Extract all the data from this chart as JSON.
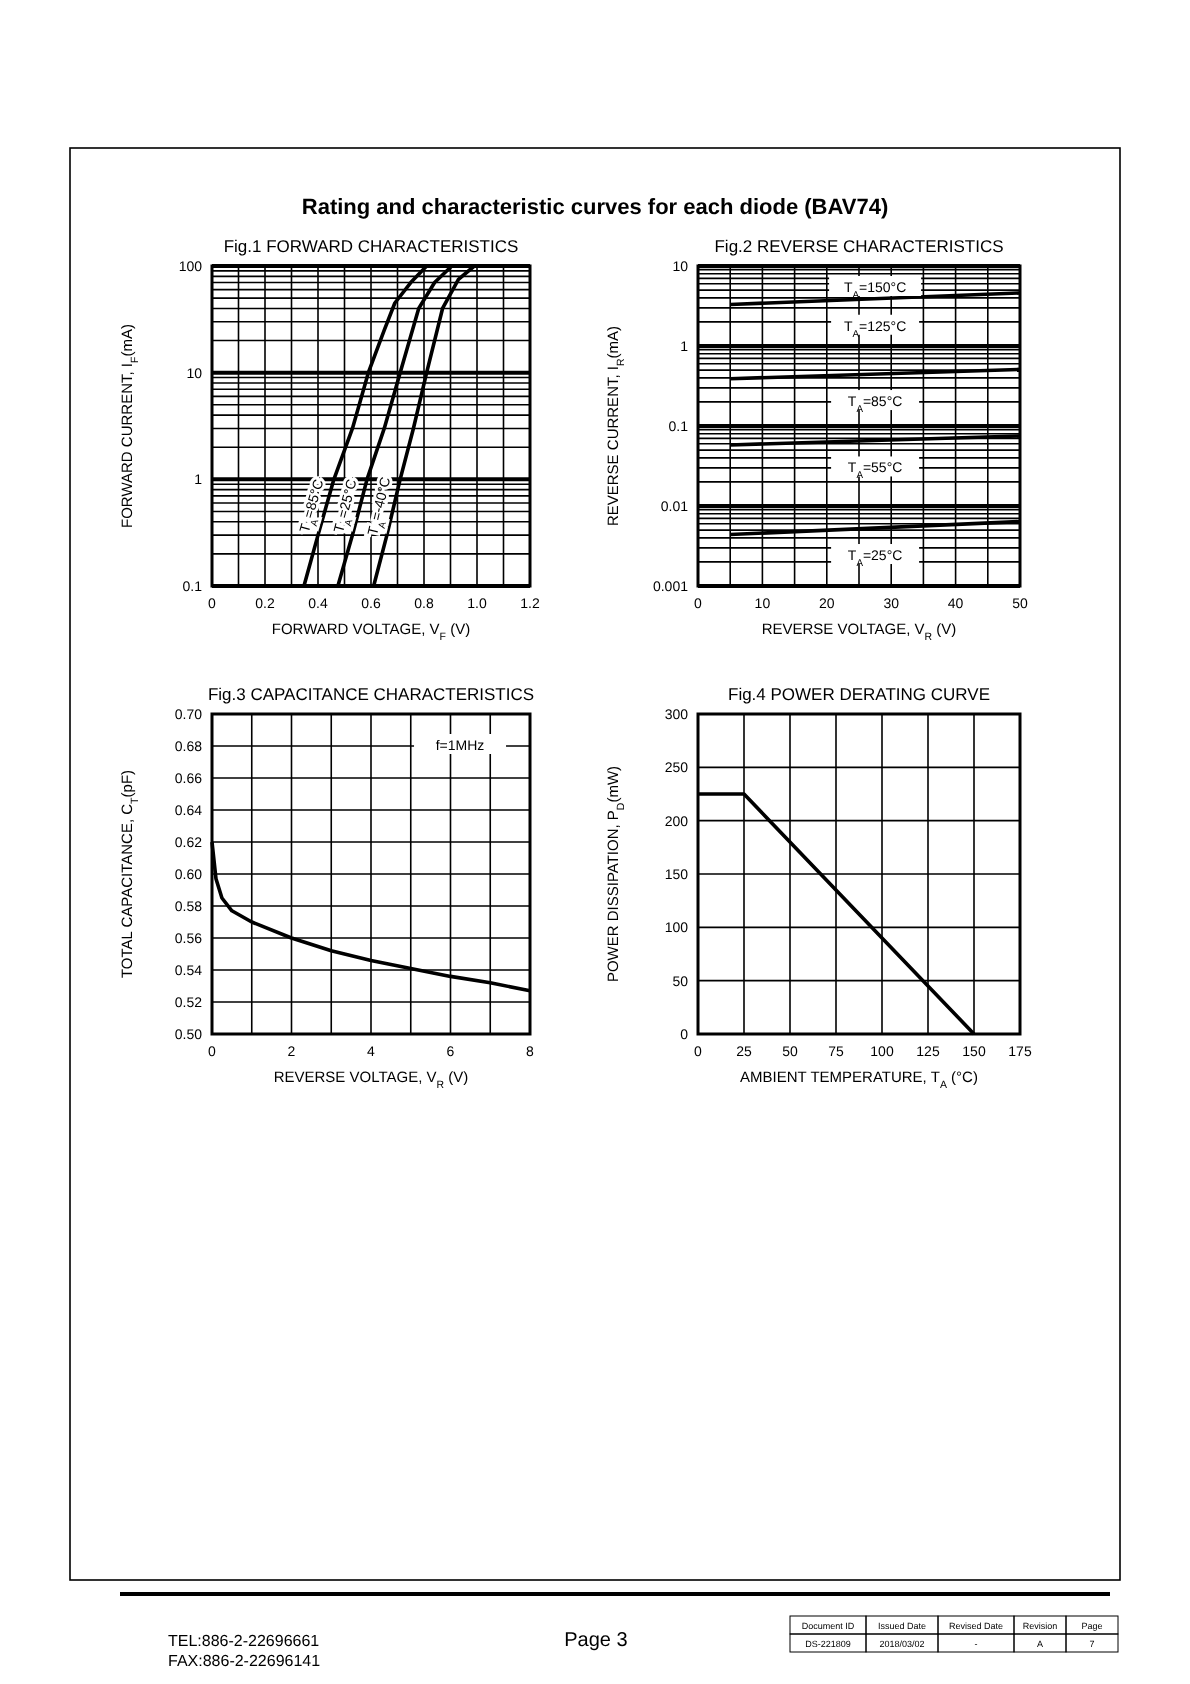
{
  "chart_data": [
    {
      "type": "line",
      "title": "Fig.1 FORWARD CHARACTERISTICS",
      "xlabel": "FORWARD VOLTAGE, V$_{F}$ (V)",
      "ylabel": "FORWARD CURRENT, I$_{F}$(mA)",
      "log": "y",
      "grid": true,
      "line_style": "solid",
      "xlim": [
        0,
        1.2
      ],
      "xticks": [
        0,
        {
          "value": 0.1,
          "label": null
        },
        0.2,
        {
          "value": 0.3,
          "label": null
        },
        0.4,
        {
          "value": 0.5,
          "label": null
        },
        0.6,
        {
          "value": 0.7,
          "label": null
        },
        0.8,
        {
          "value": 0.9,
          "label": null
        },
        {
          "value": 1,
          "label": "1.0"
        },
        {
          "value": 1.1,
          "label": null
        },
        1.2
      ],
      "ylim": [
        0.1,
        100
      ],
      "yticks": [
        0.1,
        1,
        10,
        100
      ],
      "series": [
        {
          "name": "T$_{A}$=85°C",
          "color": "#000000",
          "x": [
            0.347,
            0.4,
            0.46,
            0.53,
            0.59,
            0.65,
            0.69,
            0.75,
            0.81
          ],
          "values": [
            0.1,
            0.3,
            1,
            3,
            10,
            25,
            45,
            70,
            100
          ]
        },
        {
          "name": "T$_{A}$=25°C",
          "color": "#000000",
          "x": [
            0.475,
            0.53,
            0.585,
            0.65,
            0.71,
            0.78,
            0.84,
            0.905
          ],
          "values": [
            0.1,
            0.3,
            1,
            3,
            10,
            40,
            70,
            100
          ]
        },
        {
          "name": "T$_{A}$=-40°C",
          "color": "#000000",
          "x": [
            0.61,
            0.66,
            0.71,
            0.76,
            0.81,
            0.87,
            0.93,
            0.99
          ],
          "values": [
            0.1,
            0.3,
            1,
            3,
            10,
            40,
            75,
            100
          ]
        }
      ]
    },
    {
      "type": "line",
      "title": "Fig.2 REVERSE CHARACTERISTICS",
      "xlabel": "REVERSE VOLTAGE, V$_{R}$ (V)",
      "ylabel": "REVERSE CURRENT, I$_{R}$(mA)",
      "log": "y",
      "grid": true,
      "line_style": "solid",
      "xlim": [
        0,
        50
      ],
      "xticks": [
        0,
        {
          "value": 5,
          "label": null
        },
        10,
        {
          "value": 15,
          "label": null
        },
        20,
        {
          "value": 25,
          "label": null
        },
        30,
        {
          "value": 35,
          "label": null
        },
        40,
        {
          "value": 45,
          "label": null
        },
        50
      ],
      "ylim": [
        0.001,
        10
      ],
      "yticks": [
        0.001,
        0.01,
        0.1,
        1,
        10
      ],
      "annotations": [
        "T$_{A}$=150°C"
      ],
      "series": [
        {
          "name": "T$_{A}$=125°C",
          "color": "#000000",
          "x": [
            5,
            50
          ],
          "values": [
            3.3,
            4.6
          ]
        },
        {
          "name": "T$_{A}$=85°C",
          "color": "#000000",
          "x": [
            5,
            50
          ],
          "values": [
            0.39,
            0.51
          ]
        },
        {
          "name": "T$_{A}$=55°C",
          "color": "#000000",
          "x": [
            5,
            50
          ],
          "values": [
            0.058,
            0.075
          ]
        },
        {
          "name": "T$_{A}$=25°C",
          "color": "#000000",
          "x": [
            5,
            50
          ],
          "values": [
            0.0044,
            0.0064
          ]
        }
      ]
    },
    {
      "type": "line",
      "title": "Fig.3 CAPACITANCE CHARACTERISTICS",
      "xlabel": "REVERSE VOLTAGE, V$_{R}$ (V)",
      "ylabel": "TOTAL CAPACITANCE, C$_{T}$(pF)",
      "grid": true,
      "line_style": "solid",
      "xlim": [
        0,
        8
      ],
      "xticks": [
        0,
        {
          "value": 1,
          "label": null
        },
        2,
        {
          "value": 3,
          "label": null
        },
        4,
        {
          "value": 5,
          "label": null
        },
        6,
        {
          "value": 7,
          "label": null
        },
        8
      ],
      "ylim": [
        0.5,
        0.7
      ],
      "yticks": [
        {
          "value": 0.5,
          "label": "0.50"
        },
        0.52,
        0.54,
        0.56,
        0.58,
        {
          "value": 0.6,
          "label": "0.60"
        },
        0.62,
        0.64,
        0.66,
        0.68,
        {
          "value": 0.7,
          "label": "0.70"
        }
      ],
      "annotations": [
        "f=1MHz"
      ],
      "series": [
        {
          "color": "#000000",
          "x": [
            0,
            0.1,
            0.25,
            0.5,
            1,
            2,
            3,
            4,
            5,
            6,
            7,
            8
          ],
          "values": [
            0.62,
            0.597,
            0.585,
            0.577,
            0.57,
            0.56,
            0.552,
            0.546,
            0.541,
            0.536,
            0.532,
            0.527
          ]
        }
      ]
    },
    {
      "type": "line",
      "title": "Fig.4 POWER DERATING CURVE",
      "xlabel": "AMBIENT TEMPERATURE, T$_{A}$ (°C)",
      "ylabel": "POWER DISSIPATION, P$_{D}$(mW)",
      "grid": true,
      "line_style": "solid",
      "xlim": [
        0,
        175
      ],
      "xticks": [
        0,
        25,
        50,
        75,
        100,
        125,
        150,
        175
      ],
      "ylim": [
        0,
        300
      ],
      "yticks": [
        0,
        50,
        100,
        150,
        200,
        250,
        300
      ],
      "series": [
        {
          "color": "#000000",
          "x": [
            0,
            25,
            150
          ],
          "values": [
            225,
            225,
            0
          ]
        }
      ]
    },
    {
      "type": "other",
      "title": "Rating and characteristic curves for each diode (BAV74)",
      "annotations": [
        "TEL:886-2-22696661",
        "FAX:886-2-22696141",
        "Page 3",
        "Document ID",
        "Issued Date",
        "Revised Date",
        "Revision",
        "Page",
        "DS-221809",
        "2018/03/02",
        "-",
        "A",
        "7"
      ]
    }
  ]
}
